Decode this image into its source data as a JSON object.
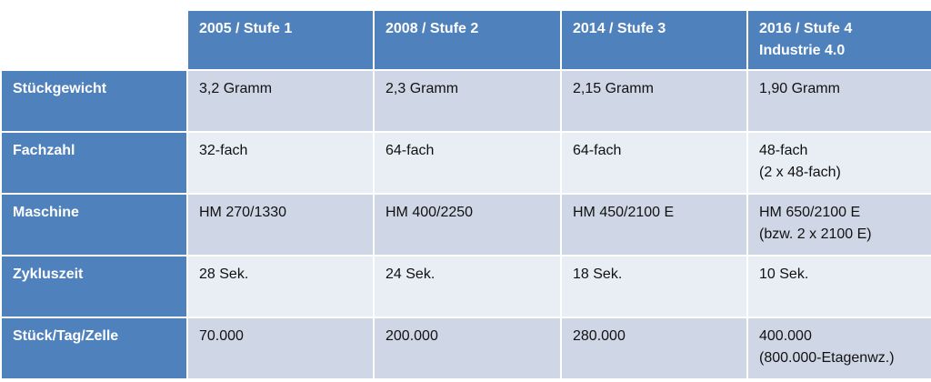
{
  "table": {
    "header": [
      [
        "2005 / Stufe 1"
      ],
      [
        "2008 / Stufe 2"
      ],
      [
        "2014 / Stufe 3"
      ],
      [
        "2016 / Stufe 4",
        "Industrie 4.0"
      ]
    ],
    "rows": [
      {
        "label": "Stückgewicht",
        "cells": [
          [
            "3,2 Gramm"
          ],
          [
            "2,3 Gramm"
          ],
          [
            "2,15 Gramm"
          ],
          [
            "1,90 Gramm"
          ]
        ]
      },
      {
        "label": "Fachzahl",
        "cells": [
          [
            "32-fach"
          ],
          [
            "64-fach"
          ],
          [
            "64-fach"
          ],
          [
            "48-fach",
            "(2 x 48-fach)"
          ]
        ]
      },
      {
        "label": "Maschine",
        "cells": [
          [
            "HM 270/1330"
          ],
          [
            "HM 400/2250"
          ],
          [
            "HM 450/2100 E"
          ],
          [
            "HM 650/2100 E",
            "(bzw. 2 x 2100 E)"
          ]
        ]
      },
      {
        "label": "Zykluszeit",
        "cells": [
          [
            "28 Sek."
          ],
          [
            "24 Sek."
          ],
          [
            "18 Sek."
          ],
          [
            "10 Sek."
          ]
        ]
      },
      {
        "label": "Stück/Tag/Zelle",
        "cells": [
          [
            "70.000"
          ],
          [
            "200.000"
          ],
          [
            "280.000"
          ],
          [
            "400.000",
            "(800.000-Etagenwz.)"
          ]
        ]
      }
    ]
  }
}
